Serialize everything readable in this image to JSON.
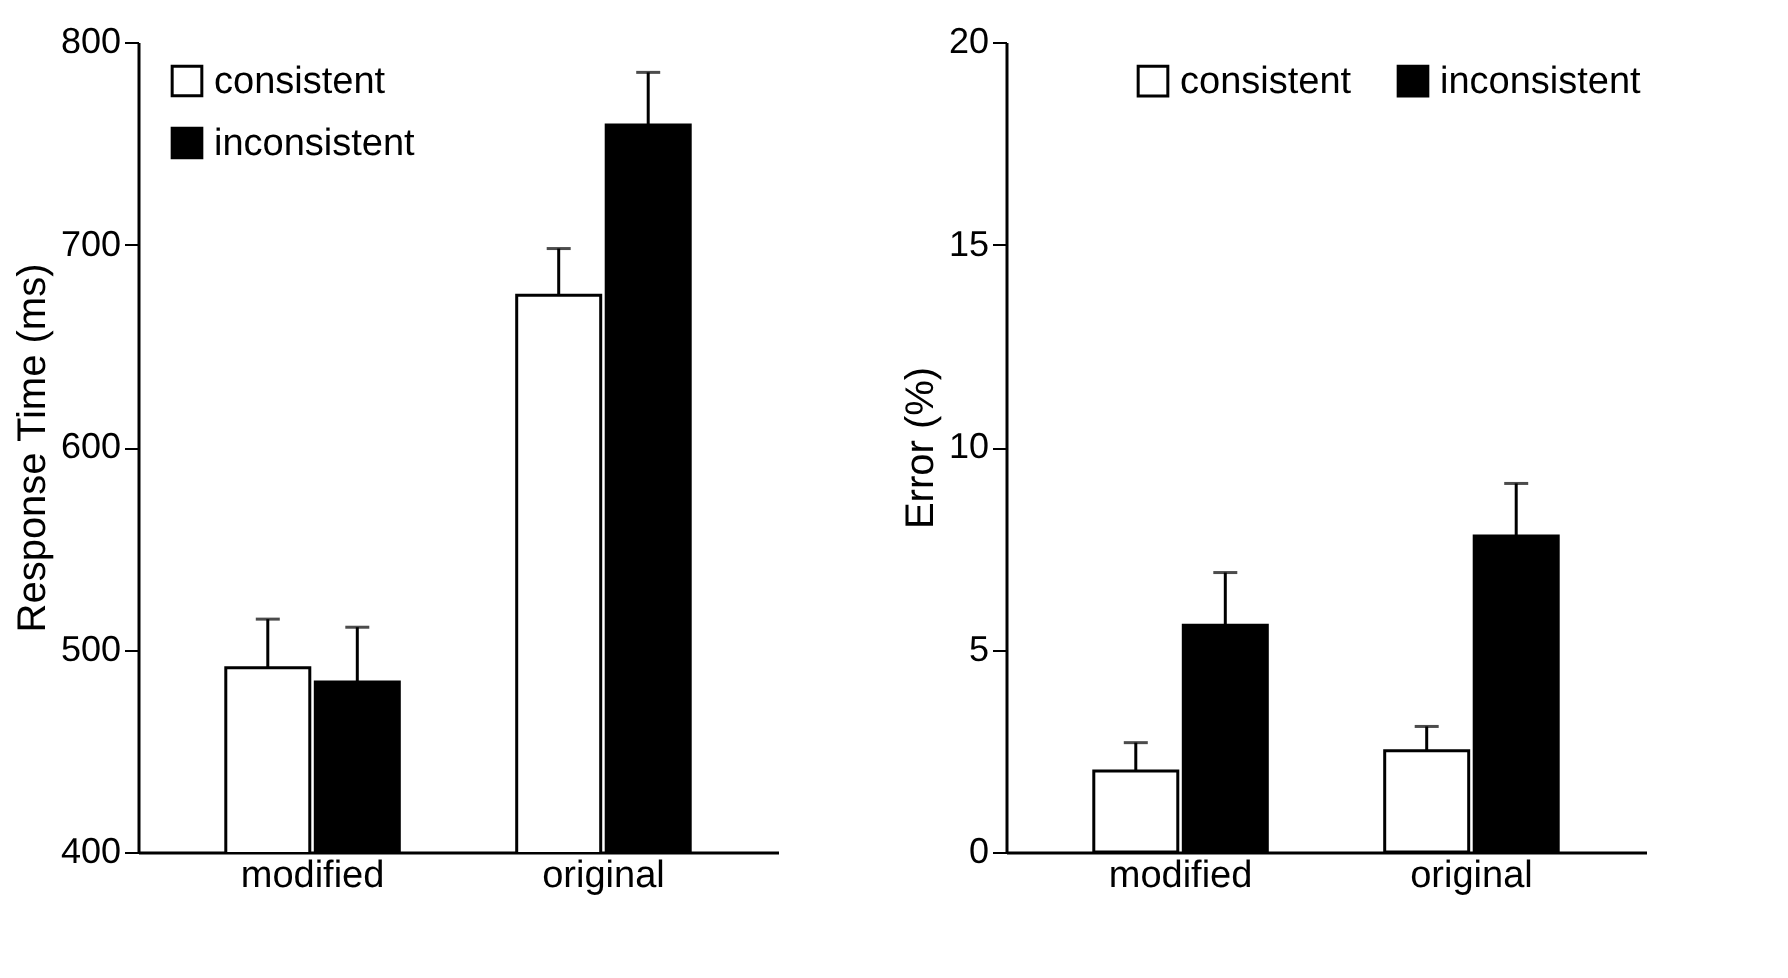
{
  "chart_data": [
    {
      "type": "bar",
      "categories": [
        "modified",
        "original"
      ],
      "ylabel": "Response Time (ms)",
      "ylim": [
        400,
        800
      ],
      "yticks": [
        400,
        500,
        600,
        700,
        800
      ],
      "grid": false,
      "legend": "top left",
      "series": [
        {
          "name": "consistent",
          "color": "#ffffff",
          "values": [
            491,
            675
          ],
          "errors": [
            [
              491,
              515
            ],
            [
              675,
              698
            ]
          ]
        },
        {
          "name": "inconsistent",
          "color": "#000000",
          "values": [
            484,
            759
          ],
          "errors": [
            [
              484,
              511
            ],
            [
              759,
              785
            ]
          ]
        }
      ]
    },
    {
      "type": "bar",
      "categories": [
        "modified",
        "original"
      ],
      "ylabel": "Error (%)",
      "ylim": [
        0,
        20
      ],
      "yticks": [
        0,
        5,
        10,
        15,
        20
      ],
      "grid": false,
      "legend": "top",
      "series": [
        {
          "name": "consistent",
          "color": "#ffffff",
          "values": [
            2.0,
            2.5
          ],
          "errors": [
            [
              2.0,
              2.7
            ],
            [
              2.5,
              3.1
            ]
          ]
        },
        {
          "name": "inconsistent",
          "color": "#000000",
          "values": [
            5.6,
            7.8
          ],
          "errors": [
            [
              5.6,
              6.9
            ],
            [
              7.8,
              9.1
            ]
          ]
        }
      ]
    }
  ]
}
